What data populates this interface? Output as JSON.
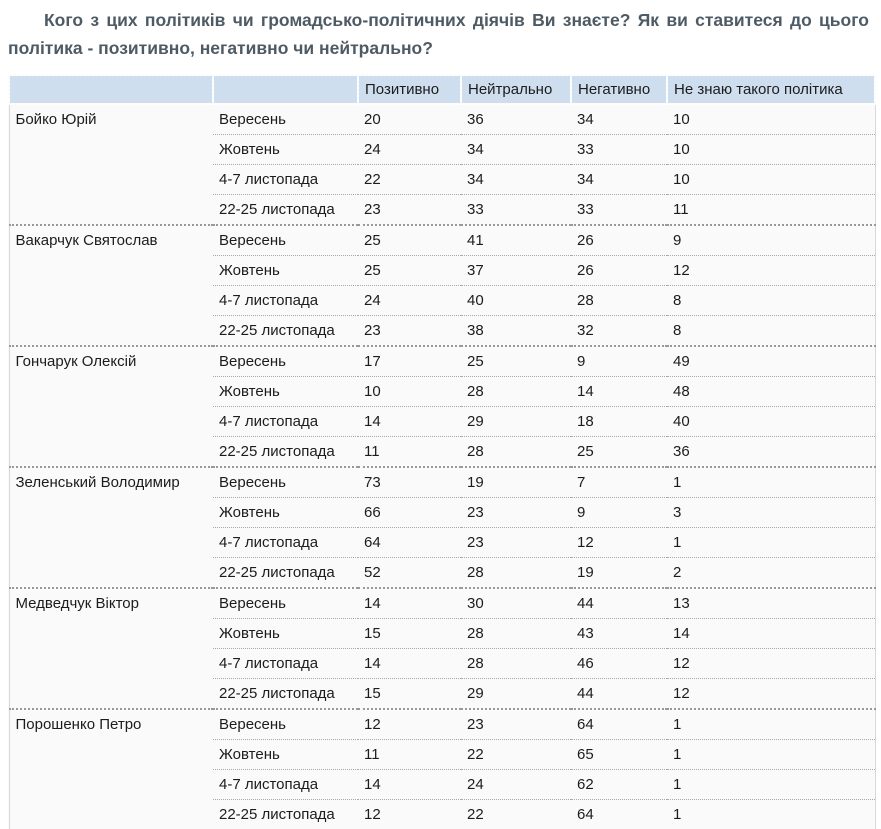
{
  "title": "Кого з цих політиків чи громадсько-політичних діячів Ви знаєте? Як ви ставитеся до цього політика - позитивно, негативно чи нейтрально?",
  "colors": {
    "title_text": "#4e5a64",
    "header_bg": "#cfdeee",
    "body_bg": "#fafafa",
    "row_border": "#999999"
  },
  "table": {
    "columns": [
      {
        "id": "politician",
        "label": ""
      },
      {
        "id": "period",
        "label": ""
      },
      {
        "id": "positive",
        "label": "Позитивно"
      },
      {
        "id": "neutral",
        "label": "Нейтрально"
      },
      {
        "id": "negative",
        "label": "Негативно"
      },
      {
        "id": "dont-know",
        "label": "Не знаю такого політика"
      }
    ]
  },
  "chart_data": {
    "type": "table",
    "title": "Кого з цих політиків чи громадсько-політичних діячів Ви знаєте? Як ви ставитеся до цього політика - позитивно, негативно чи нейтрально?",
    "columns": [
      "Позитивно",
      "Нейтрально",
      "Негативно",
      "Не знаю такого політика"
    ],
    "periods": [
      "Вересень",
      "Жовтень",
      "4-7 листопада",
      "22-25 листопада"
    ],
    "series": [
      {
        "name": "Бойко Юрій",
        "rows": [
          [
            20,
            36,
            34,
            10
          ],
          [
            24,
            34,
            33,
            10
          ],
          [
            22,
            34,
            34,
            10
          ],
          [
            23,
            33,
            33,
            11
          ]
        ]
      },
      {
        "name": "Вакарчук Святослав",
        "rows": [
          [
            25,
            41,
            26,
            9
          ],
          [
            25,
            37,
            26,
            12
          ],
          [
            24,
            40,
            28,
            8
          ],
          [
            23,
            38,
            32,
            8
          ]
        ]
      },
      {
        "name": "Гончарук Олексій",
        "rows": [
          [
            17,
            25,
            9,
            49
          ],
          [
            10,
            28,
            14,
            48
          ],
          [
            14,
            29,
            18,
            40
          ],
          [
            11,
            28,
            25,
            36
          ]
        ]
      },
      {
        "name": "Зеленський Володимир",
        "rows": [
          [
            73,
            19,
            7,
            1
          ],
          [
            66,
            23,
            9,
            3
          ],
          [
            64,
            23,
            12,
            1
          ],
          [
            52,
            28,
            19,
            2
          ]
        ]
      },
      {
        "name": "Медведчук Віктор",
        "rows": [
          [
            14,
            30,
            44,
            13
          ],
          [
            15,
            28,
            43,
            14
          ],
          [
            14,
            28,
            46,
            12
          ],
          [
            15,
            29,
            44,
            12
          ]
        ]
      },
      {
        "name": "Порошенко Петро",
        "rows": [
          [
            12,
            23,
            64,
            1
          ],
          [
            11,
            22,
            65,
            1
          ],
          [
            14,
            24,
            62,
            1
          ],
          [
            12,
            22,
            64,
            1
          ]
        ]
      }
    ]
  }
}
